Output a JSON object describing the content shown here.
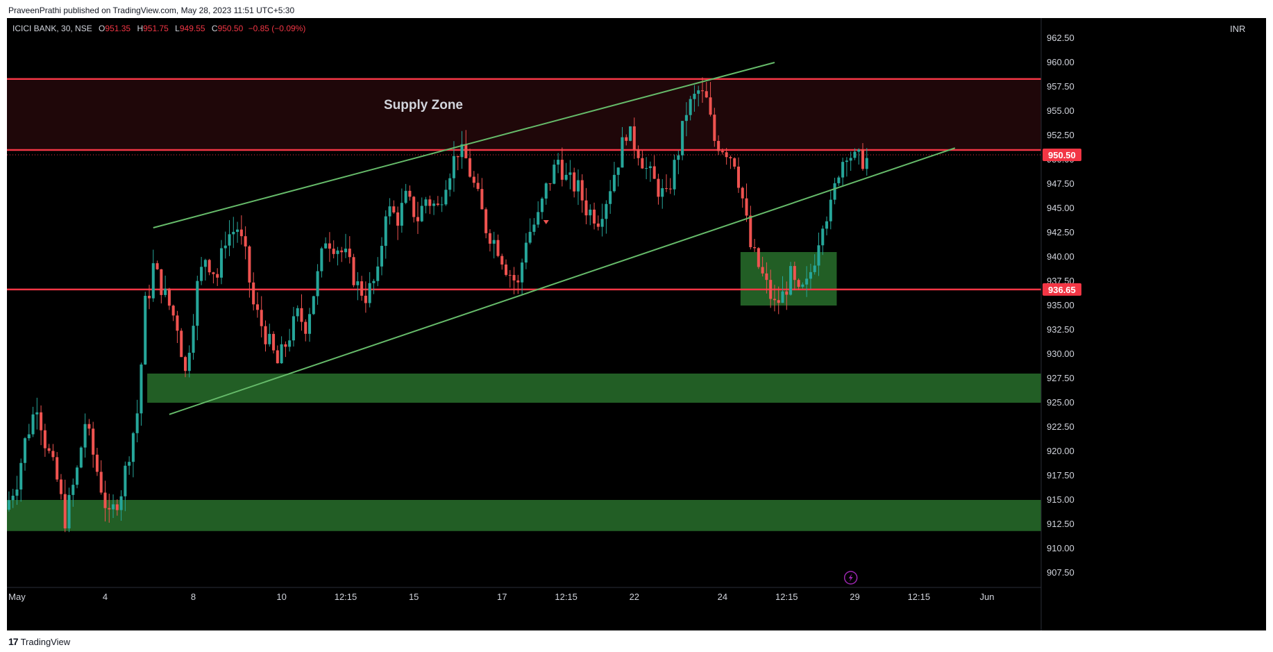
{
  "header": {
    "published_by": "PraveenPrathi published on TradingView.com, May 28, 2023 11:51 UTC+5:30"
  },
  "symbol": {
    "name": "ICICI BANK, 30, NSE",
    "open_label": "O",
    "open": "951.35",
    "high_label": "H",
    "high": "951.75",
    "low_label": "L",
    "low": "949.55",
    "close_label": "C",
    "close": "950.50",
    "change": "−0.85 (−0.09%)"
  },
  "currency": "INR",
  "footer": {
    "brand": "TradingView",
    "logo": "17"
  },
  "colors": {
    "background": "#000000",
    "up": "#26a69a",
    "down": "#ef5350",
    "supply": "#f23645",
    "demand": "#2e7d32",
    "trendline": "#66bb6a"
  },
  "chart_data": {
    "type": "candlestick",
    "ylim": [
      906.0,
      964.0
    ],
    "y_ticks": [
      "962.50",
      "960.00",
      "957.50",
      "955.00",
      "952.50",
      "950.00",
      "947.50",
      "945.00",
      "942.50",
      "940.00",
      "937.50",
      "935.00",
      "932.50",
      "930.00",
      "927.50",
      "925.00",
      "922.50",
      "920.00",
      "917.50",
      "915.00",
      "912.50",
      "910.00",
      "907.50"
    ],
    "x_ticks": [
      {
        "label": "May",
        "bar": 2
      },
      {
        "label": "4",
        "bar": 24
      },
      {
        "label": "8",
        "bar": 46
      },
      {
        "label": "10",
        "bar": 68
      },
      {
        "label": "12:15",
        "bar": 84
      },
      {
        "label": "15",
        "bar": 101
      },
      {
        "label": "17",
        "bar": 123
      },
      {
        "label": "12:15",
        "bar": 139
      },
      {
        "label": "22",
        "bar": 156
      },
      {
        "label": "24",
        "bar": 178
      },
      {
        "label": "12:15",
        "bar": 194
      },
      {
        "label": "29",
        "bar": 211
      },
      {
        "label": "12:15",
        "bar": 227
      },
      {
        "label": "Jun",
        "bar": 244
      }
    ],
    "bar_count_visible": 258,
    "candles_shown": 215,
    "anchors": [
      [
        0,
        914
      ],
      [
        3,
        917
      ],
      [
        5,
        921
      ],
      [
        8,
        925
      ],
      [
        10,
        921
      ],
      [
        13,
        917
      ],
      [
        15,
        913
      ],
      [
        18,
        918
      ],
      [
        20,
        923
      ],
      [
        23,
        918
      ],
      [
        26,
        913
      ],
      [
        29,
        916
      ],
      [
        31,
        920
      ],
      [
        33,
        924
      ],
      [
        35,
        934
      ],
      [
        37,
        939
      ],
      [
        40,
        936
      ],
      [
        43,
        933
      ],
      [
        45,
        928
      ],
      [
        48,
        937
      ],
      [
        50,
        940
      ],
      [
        53,
        938
      ],
      [
        55,
        942
      ],
      [
        58,
        943
      ],
      [
        60,
        940
      ],
      [
        62,
        935
      ],
      [
        65,
        932
      ],
      [
        68,
        929
      ],
      [
        70,
        931
      ],
      [
        73,
        934
      ],
      [
        75,
        933
      ],
      [
        78,
        938
      ],
      [
        80,
        942
      ],
      [
        83,
        941
      ],
      [
        85,
        940
      ],
      [
        88,
        937
      ],
      [
        90,
        936
      ],
      [
        93,
        938
      ],
      [
        95,
        945
      ],
      [
        98,
        944
      ],
      [
        100,
        946
      ],
      [
        103,
        944
      ],
      [
        105,
        946
      ],
      [
        108,
        945
      ],
      [
        110,
        948
      ],
      [
        113,
        951
      ],
      [
        115,
        950
      ],
      [
        118,
        946
      ],
      [
        120,
        943
      ],
      [
        123,
        941
      ],
      [
        125,
        939
      ],
      [
        128,
        937
      ],
      [
        130,
        942
      ],
      [
        133,
        944
      ],
      [
        135,
        947
      ],
      [
        138,
        950
      ],
      [
        140,
        948
      ],
      [
        143,
        947
      ],
      [
        145,
        945
      ],
      [
        148,
        944
      ],
      [
        150,
        946
      ],
      [
        153,
        950
      ],
      [
        155,
        953
      ],
      [
        158,
        951
      ],
      [
        160,
        949
      ],
      [
        163,
        947
      ],
      [
        165,
        946
      ],
      [
        168,
        951
      ],
      [
        170,
        955
      ],
      [
        173,
        957
      ],
      [
        175,
        956
      ],
      [
        177,
        952
      ],
      [
        180,
        951
      ],
      [
        182,
        950
      ],
      [
        184,
        946
      ],
      [
        186,
        941
      ],
      [
        188,
        939
      ],
      [
        190,
        937
      ],
      [
        192,
        935
      ],
      [
        194,
        936
      ],
      [
        196,
        938
      ],
      [
        198,
        936
      ],
      [
        200,
        937
      ],
      [
        202,
        940
      ],
      [
        204,
        944
      ],
      [
        206,
        945
      ],
      [
        208,
        949
      ],
      [
        210,
        951
      ],
      [
        212,
        950
      ]
    ],
    "price_lines": [
      {
        "price": 958.3,
        "color": "#f23645"
      },
      {
        "price": 951.0,
        "color": "#f23645"
      },
      {
        "price": 936.65,
        "color": "#f23645",
        "label": "936.65"
      }
    ],
    "last_price": {
      "price": 950.5,
      "label": "950.50",
      "color": "#f23645"
    },
    "zones": [
      {
        "label": "Supply Zone",
        "x_start_bar": 0,
        "x_end_bar": 258,
        "top": 958.3,
        "bottom": 951.0,
        "fill": "#f23645",
        "opacity": 0.13
      },
      {
        "x_start_bar": 35,
        "x_end_bar": 258,
        "top": 928.0,
        "bottom": 925.0,
        "fill": "#2e7d32",
        "opacity": 0.75
      },
      {
        "x_start_bar": 0,
        "x_end_bar": 258,
        "top": 915.0,
        "bottom": 911.8,
        "fill": "#2e7d32",
        "opacity": 0.75
      },
      {
        "x_start_bar": 183,
        "x_end_bar": 207,
        "top": 940.5,
        "bottom": 935.0,
        "fill": "#2e7d32",
        "opacity": 0.75
      }
    ],
    "trendlines": [
      {
        "from_bar": 36,
        "from_price": 943.0,
        "to_bar": 191,
        "to_price": 960.0
      },
      {
        "from_bar": 40,
        "from_price": 923.8,
        "to_bar": 236,
        "to_price": 951.2
      }
    ],
    "markers": [
      {
        "type": "arrow-down",
        "bar": 134,
        "price": 943.5,
        "color": "#ef5350"
      },
      {
        "type": "lightning-icon",
        "bar": 210,
        "price": 907.0,
        "color": "#9c27b0"
      }
    ]
  }
}
